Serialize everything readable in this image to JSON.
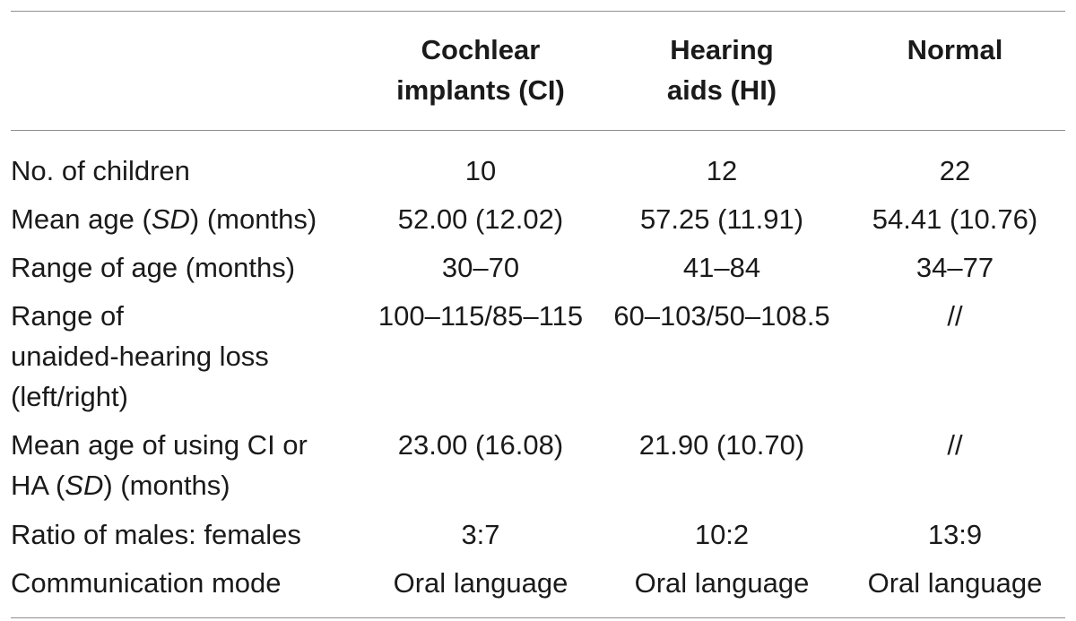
{
  "table": {
    "headers": [
      "",
      "Cochlear implants (CI)",
      "Hearing aids (HI)",
      "Normal"
    ],
    "header_lines": {
      "ci": [
        "Cochlear",
        "implants (CI)"
      ],
      "hi": [
        "Hearing",
        "aids (HI)"
      ],
      "normal": [
        "Normal"
      ]
    },
    "rows": [
      {
        "label": "No. of children",
        "ci": "10",
        "hi": "12",
        "normal": "22"
      },
      {
        "label_parts": [
          "Mean age (",
          "SD",
          ") (months)"
        ],
        "ci": "52.00 (12.02)",
        "hi": "57.25 (11.91)",
        "normal": "54.41 (10.76)"
      },
      {
        "label": "Range of age (months)",
        "ci": "30–70",
        "hi": "41–84",
        "normal": "34–77"
      },
      {
        "label": "Range of unaided-hearing loss (left/right)",
        "label_lines": [
          "Range of",
          "unaided-hearing loss",
          "(left/right)"
        ],
        "ci": "100–115/85–115",
        "hi": "60–103/50–108.5",
        "normal": "//"
      },
      {
        "label_lines_parts": [
          "Mean age of using CI or",
          "HA (",
          "SD",
          ") (months)"
        ],
        "ci": "23.00 (16.08)",
        "hi": "21.90 (10.70)",
        "normal": "//"
      },
      {
        "label": "Ratio of males: females",
        "ci": "3:7",
        "hi": "10:2",
        "normal": "13:9"
      },
      {
        "label": "Communication mode",
        "ci": "Oral language",
        "hi": "Oral language",
        "normal": "Oral language"
      }
    ]
  }
}
